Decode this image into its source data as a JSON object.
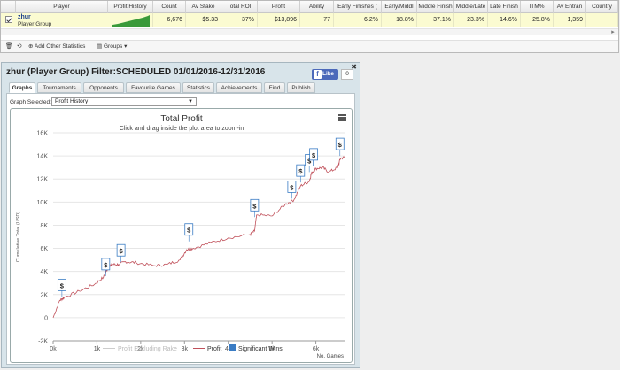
{
  "grid": {
    "columns": [
      "Player",
      "Profit History",
      "Count",
      "Av Stake",
      "Total ROI",
      "Profit",
      "Ability",
      "Early Finishes (",
      "Early/Middl",
      "Middle Finish",
      "Middle/Late",
      "Late Finish",
      "ITM%",
      "Av Entran",
      "Country"
    ],
    "row": {
      "name": "zhur",
      "type": "Player Group",
      "values": [
        "6,676",
        "$5.33",
        "37%",
        "$13,896",
        "77",
        "6.2%",
        "18.8%",
        "37.1%",
        "23.3%",
        "14.6%",
        "25.8%",
        "1,359",
        ""
      ]
    },
    "toolbar": {
      "add_stats": "Add Other Statistics",
      "groups": "Groups"
    }
  },
  "window": {
    "title": "zhur (Player Group) Filter:SCHEDULED 01/01/2016-12/31/2016",
    "fb_like": "Like",
    "fb_count": "0",
    "tabs": [
      "Graphs",
      "Tournaments",
      "Opponents",
      "Favourite Games",
      "Statistics",
      "Achievements",
      "Find",
      "Publish"
    ],
    "active_tab": "Graphs",
    "graph_selected_label": "Graph Selected:",
    "graph_selected_value": "Profit History"
  },
  "chart_data": {
    "type": "line",
    "title": "Total Profit",
    "subtitle": "Click and drag inside the plot area to zoom-in",
    "xlabel": "No. Games",
    "ylabel": "Cumulative Total (USD)",
    "xlim": [
      0,
      6676
    ],
    "ylim": [
      -2000,
      16000
    ],
    "x_ticks": [
      "0k",
      "1k",
      "2k",
      "3k",
      "4k",
      "5k",
      "6k"
    ],
    "y_ticks": [
      "-2K",
      "0",
      "2K",
      "4K",
      "6K",
      "8K",
      "10K",
      "12K",
      "14K",
      "16K"
    ],
    "series": [
      {
        "name": "Profit Excluding Rake",
        "color": "#cccccc",
        "visible": false
      },
      {
        "name": "Profit",
        "color": "#c0505a",
        "points": [
          [
            0,
            0
          ],
          [
            150,
            1500
          ],
          [
            250,
            1750
          ],
          [
            600,
            2300
          ],
          [
            950,
            2900
          ],
          [
            1150,
            3500
          ],
          [
            1250,
            4300
          ],
          [
            1350,
            4600
          ],
          [
            1500,
            4600
          ],
          [
            1650,
            4850
          ],
          [
            1900,
            4750
          ],
          [
            2300,
            4500
          ],
          [
            2600,
            4600
          ],
          [
            2900,
            5000
          ],
          [
            3050,
            5900
          ],
          [
            3200,
            6000
          ],
          [
            3600,
            6500
          ],
          [
            4000,
            6900
          ],
          [
            4500,
            7200
          ],
          [
            4600,
            7500
          ],
          [
            4650,
            8900
          ],
          [
            5000,
            8800
          ],
          [
            5300,
            9800
          ],
          [
            5500,
            10200
          ],
          [
            5650,
            11400
          ],
          [
            5850,
            11800
          ],
          [
            5900,
            12500
          ],
          [
            6000,
            12900
          ],
          [
            6150,
            13000
          ],
          [
            6300,
            12600
          ],
          [
            6500,
            13000
          ],
          [
            6560,
            13800
          ],
          [
            6676,
            13896
          ]
        ]
      },
      {
        "name": "Significant Wins",
        "color": "#3a7cc4",
        "markers": [
          [
            200,
            1800
          ],
          [
            1200,
            3600
          ],
          [
            1550,
            4800
          ],
          [
            3100,
            6600
          ],
          [
            4600,
            8700
          ],
          [
            5450,
            10300
          ],
          [
            5650,
            11700
          ],
          [
            5850,
            12600
          ],
          [
            5950,
            13100
          ],
          [
            6550,
            14000
          ]
        ],
        "marker_label": "$"
      }
    ],
    "legend": "bottom",
    "grid": "horizontal"
  }
}
